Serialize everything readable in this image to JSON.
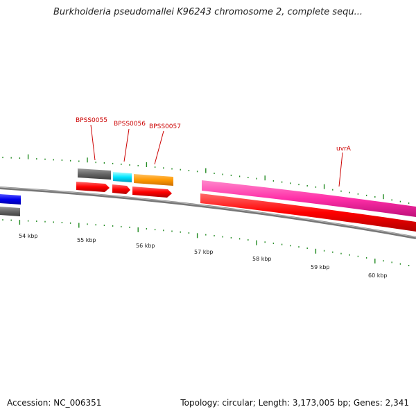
{
  "title": "Burkholderia pseudomallei K96243 chromosome 2, complete sequ...",
  "footer": {
    "accession": "Accession: NC_006351",
    "summary": "Topology: circular; Length: 3,173,005 bp; Genes: 2,341"
  },
  "scale": {
    "labels": [
      "54 kbp",
      "55 kbp",
      "56 kbp",
      "57 kbp",
      "58 kbp",
      "59 kbp",
      "60 kbp"
    ]
  },
  "genes": {
    "bpss0055": "BPSS0055",
    "bpss0056": "BPSS0056",
    "bpss0057": "BPSS0057",
    "uvra": "uvrA"
  },
  "colors": {
    "backbone": "#808080",
    "cds": "#ff0000",
    "gene_gray": "#666666",
    "gene_cyan": "#00e5ff",
    "gene_orange": "#ff9900",
    "gene_magenta": "#ff33aa",
    "gene_blue": "#0000ee",
    "tick": "#228b22",
    "label": "#cc0000"
  }
}
